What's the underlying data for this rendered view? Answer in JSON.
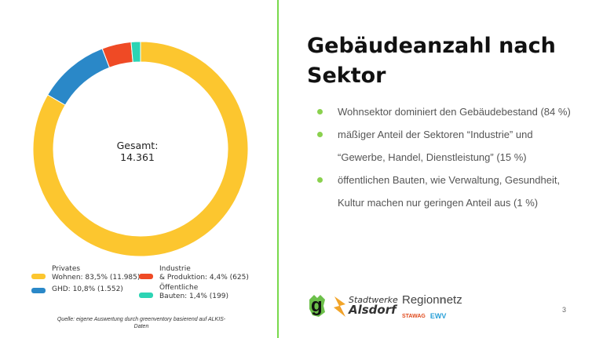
{
  "title_lines": [
    "Gebäudeanzahl nach",
    "Sektor"
  ],
  "chart_data": {
    "type": "pie",
    "categories": [
      "Privates Wohnen",
      "GHD",
      "Industrie & Produktion",
      "Öffentliche Bauten"
    ],
    "values": [
      83.5,
      10.8,
      4.4,
      1.4
    ],
    "counts": [
      11985,
      1552,
      625,
      199
    ],
    "colors": [
      "#fcc62f",
      "#2a88c8",
      "#ef4a25",
      "#2dd4b4"
    ],
    "center_label": [
      "Gesamt:",
      "14.361"
    ],
    "legend_placement": "bottom"
  },
  "legend": {
    "privates": [
      "Privates",
      "Wohnen: 83,5% (11.985)"
    ],
    "ghd": "GHD: 10,8% (1.552)",
    "industrie": [
      "Industrie",
      "& Produktion: 4,4% (625)"
    ],
    "oeffentlich": [
      "Öffentliche",
      "Bauten: 1,4% (199)"
    ]
  },
  "source": [
    "Quelle: eigene Auswertung durch greenventory basierend auf ALKIS-",
    "Daten"
  ],
  "bullets": [
    [
      "Wohnsektor dominiert den Gebäudebestand (84 %)"
    ],
    [
      "mäßiger Anteil der Sektoren “Industrie” und",
      "“Gewerbe, Handel, Dienstleistung” (15 %)"
    ],
    [
      "öffentlichen Bauten, wie Verwaltung, Gesundheit,",
      "Kultur machen nur geringen Anteil aus (1 %)"
    ]
  ],
  "page_number": "3",
  "logos": {
    "g": "g",
    "stadtwerke": [
      "Stadtwerke",
      "Alsdorf"
    ],
    "regionetz": [
      "Region",
      "etz"
    ],
    "stawag": "STAWAG",
    "ewv": "EWV"
  }
}
